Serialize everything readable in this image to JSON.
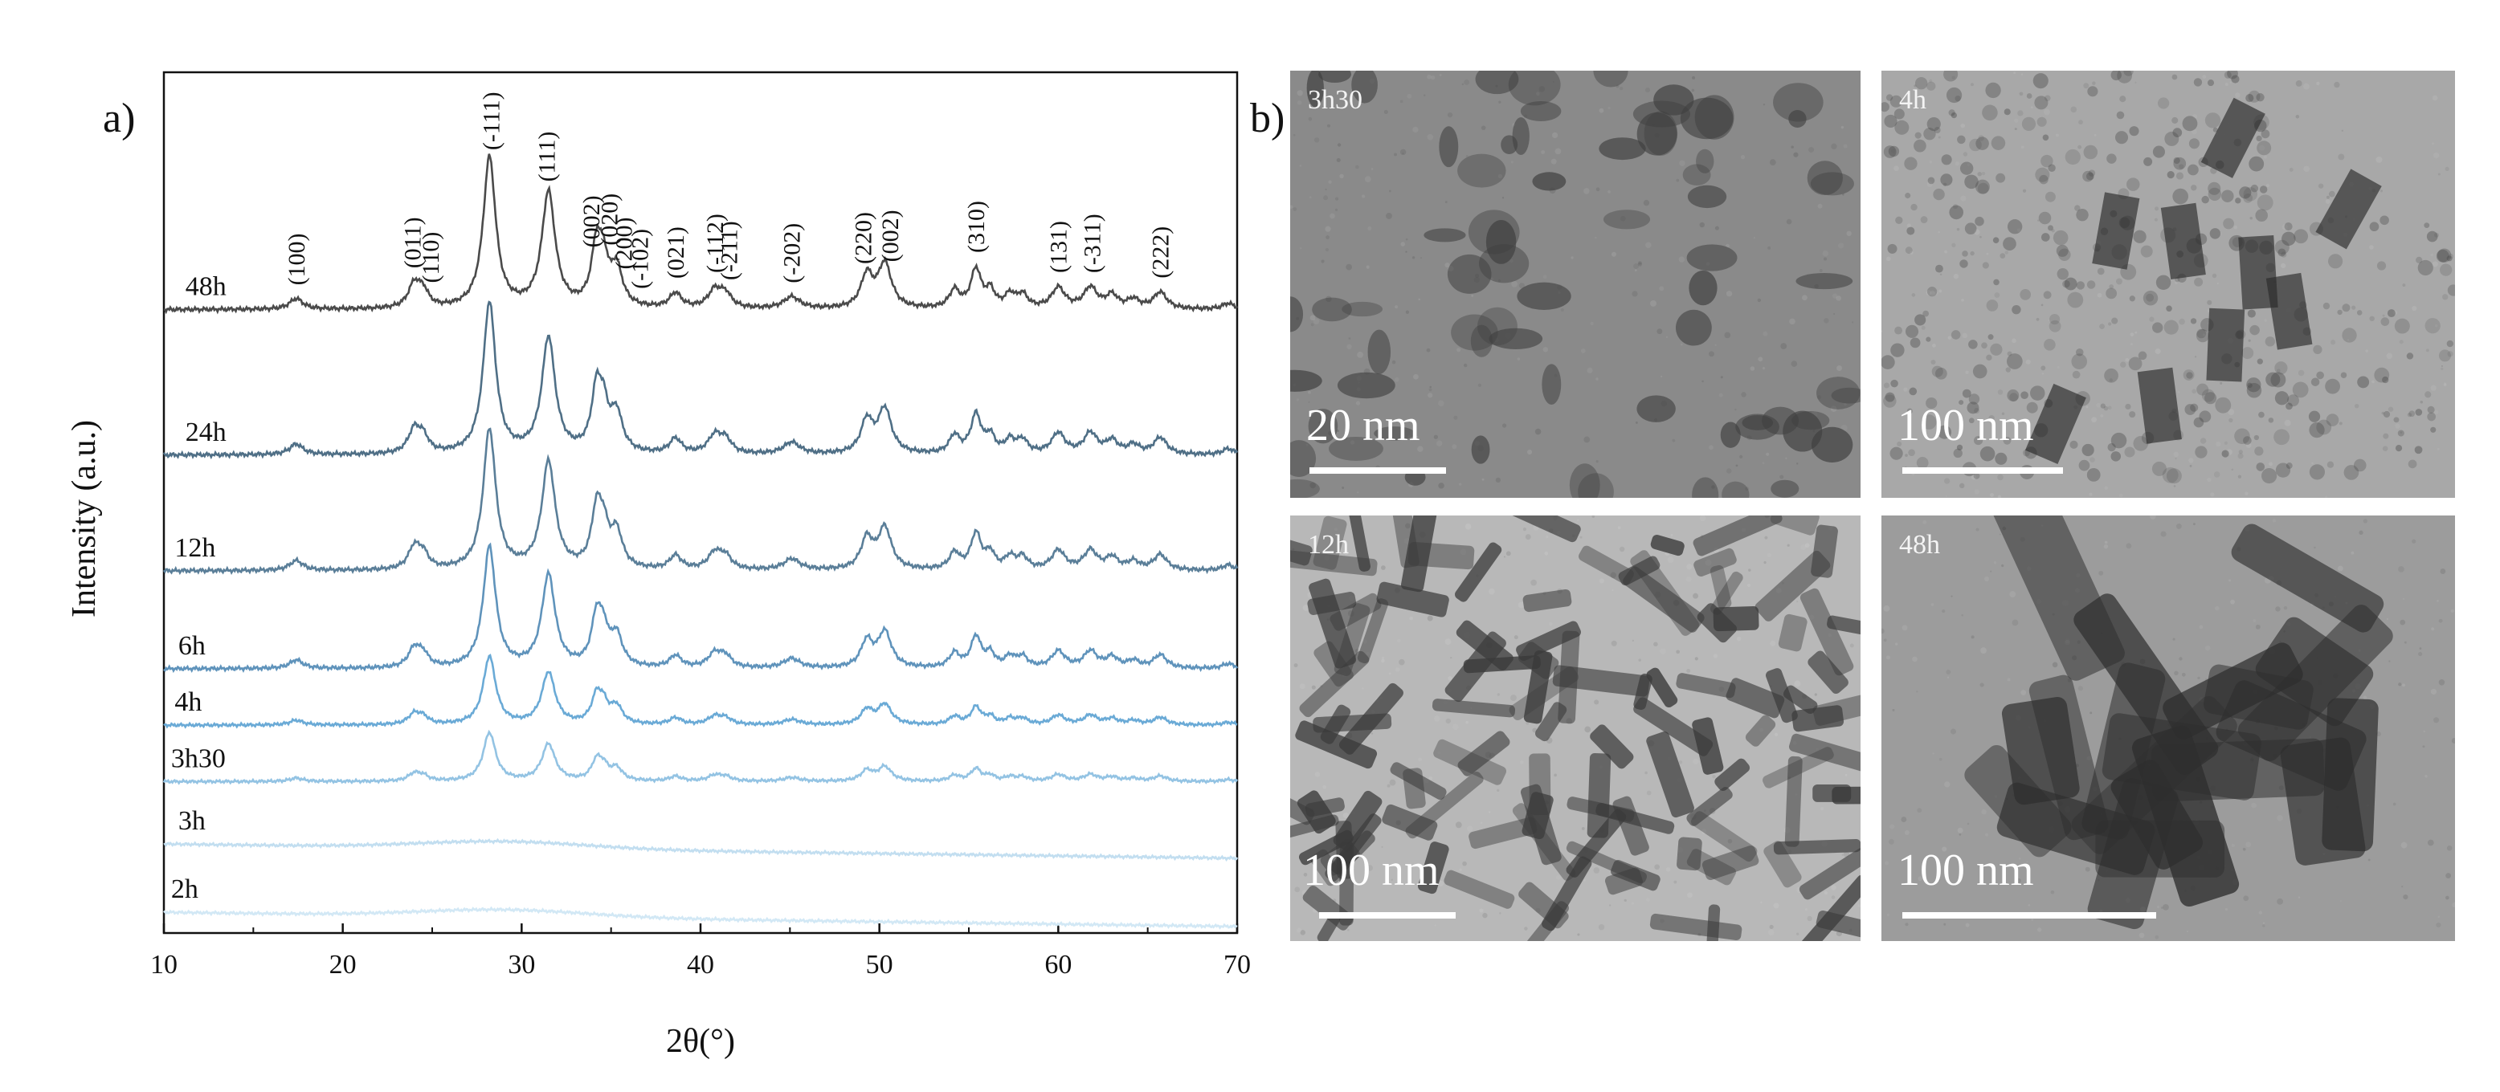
{
  "panels": {
    "a_label": "a)",
    "b_label": "b)"
  },
  "chart_data": {
    "type": "line",
    "title": "",
    "xlabel": "2θ(°)",
    "ylabel": "Intensity (a.u.)",
    "xlim": [
      10,
      70
    ],
    "xticks": [
      10,
      20,
      30,
      40,
      50,
      60,
      70
    ],
    "grid": false,
    "yticks_shown": false,
    "series": [
      {
        "name": "48h",
        "color": "#4a4a4a",
        "offset": 10.5,
        "scale": 1.0,
        "amorphous": false,
        "label_x": 11.2
      },
      {
        "name": "24h",
        "color": "#4f6f86",
        "offset": 8.05,
        "scale": 1.0,
        "amorphous": false,
        "label_x": 11.2
      },
      {
        "name": "12h",
        "color": "#5a7e98",
        "offset": 6.1,
        "scale": 0.93,
        "amorphous": false,
        "label_x": 10.6
      },
      {
        "name": "6h",
        "color": "#5f93bb",
        "offset": 4.45,
        "scale": 0.8,
        "amorphous": false,
        "label_x": 10.8
      },
      {
        "name": "4h",
        "color": "#6aaad6",
        "offset": 3.5,
        "scale": 0.45,
        "amorphous": false,
        "label_x": 10.6
      },
      {
        "name": "3h30",
        "color": "#93c3e3",
        "offset": 2.55,
        "scale": 0.32,
        "amorphous": false,
        "label_x": 10.4
      },
      {
        "name": "3h",
        "color": "#c2def0",
        "offset": 1.5,
        "scale": 0.0,
        "amorphous": true,
        "label_x": 10.8
      },
      {
        "name": "2h",
        "color": "#d2e8f5",
        "offset": 0.35,
        "scale": 0.0,
        "amorphous": true,
        "label_x": 10.4
      }
    ],
    "peaks": [
      {
        "pos": 17.4,
        "height": 0.18,
        "width": 0.45
      },
      {
        "pos": 24.0,
        "height": 0.4,
        "width": 0.4
      },
      {
        "pos": 24.5,
        "height": 0.25,
        "width": 0.35
      },
      {
        "pos": 28.2,
        "height": 2.55,
        "width": 0.42
      },
      {
        "pos": 31.5,
        "height": 1.95,
        "width": 0.45
      },
      {
        "pos": 34.2,
        "height": 1.05,
        "width": 0.35
      },
      {
        "pos": 34.6,
        "height": 0.55,
        "width": 0.3
      },
      {
        "pos": 35.3,
        "height": 0.65,
        "width": 0.4
      },
      {
        "pos": 38.6,
        "height": 0.25,
        "width": 0.4
      },
      {
        "pos": 40.8,
        "height": 0.3,
        "width": 0.45
      },
      {
        "pos": 41.4,
        "height": 0.22,
        "width": 0.4
      },
      {
        "pos": 45.1,
        "height": 0.2,
        "width": 0.55
      },
      {
        "pos": 49.3,
        "height": 0.55,
        "width": 0.4
      },
      {
        "pos": 50.3,
        "height": 0.75,
        "width": 0.45
      },
      {
        "pos": 54.2,
        "height": 0.3,
        "width": 0.35
      },
      {
        "pos": 55.4,
        "height": 0.65,
        "width": 0.35
      },
      {
        "pos": 56.2,
        "height": 0.28,
        "width": 0.3
      },
      {
        "pos": 57.3,
        "height": 0.22,
        "width": 0.35
      },
      {
        "pos": 58.0,
        "height": 0.22,
        "width": 0.35
      },
      {
        "pos": 60.0,
        "height": 0.35,
        "width": 0.45
      },
      {
        "pos": 61.8,
        "height": 0.35,
        "width": 0.45
      },
      {
        "pos": 63.0,
        "height": 0.22,
        "width": 0.4
      },
      {
        "pos": 64.2,
        "height": 0.15,
        "width": 0.4
      },
      {
        "pos": 65.7,
        "height": 0.28,
        "width": 0.45
      },
      {
        "pos": 69.5,
        "height": 0.1,
        "width": 0.4
      }
    ],
    "annotations": [
      {
        "text": "(100)",
        "x": 17.4
      },
      {
        "text": "(011)",
        "x": 23.9
      },
      {
        "text": "(110)",
        "x": 24.9
      },
      {
        "text": "(-111)",
        "x": 28.3
      },
      {
        "text": "(111)",
        "x": 31.4
      },
      {
        "text": "(002)",
        "x": 33.9
      },
      {
        "text": "(020)",
        "x": 34.9
      },
      {
        "text": "(200)",
        "x": 35.7
      },
      {
        "text": "(-102)",
        "x": 36.6
      },
      {
        "text": "(021)",
        "x": 38.6
      },
      {
        "text": "(-112)",
        "x": 40.8
      },
      {
        "text": "(-211)",
        "x": 41.6
      },
      {
        "text": "(-202)",
        "x": 45.1
      },
      {
        "text": "(220)",
        "x": 49.1
      },
      {
        "text": "(002)",
        "x": 50.6
      },
      {
        "text": "(310)",
        "x": 55.4
      },
      {
        "text": "(131)",
        "x": 60.0
      },
      {
        "text": "(-311)",
        "x": 61.9
      },
      {
        "text": "(222)",
        "x": 65.7
      }
    ]
  },
  "tem_images": [
    {
      "tag": "3h30",
      "scale_label": "20 nm",
      "tone": "#8a8a8a",
      "particle": "#3f3f3f",
      "kind": "blobs"
    },
    {
      "tag": "4h",
      "scale_label": "100 nm",
      "tone": "#a8a8a8",
      "particle": "#484848",
      "kind": "mesh"
    },
    {
      "tag": "12h",
      "scale_label": "100 nm",
      "tone": "#b8b8b8",
      "particle": "#3a3a3a",
      "kind": "rods"
    },
    {
      "tag": "48h",
      "scale_label": "100 nm",
      "tone": "#9c9c9c",
      "particle": "#2e2e2e",
      "kind": "bigrods"
    }
  ]
}
